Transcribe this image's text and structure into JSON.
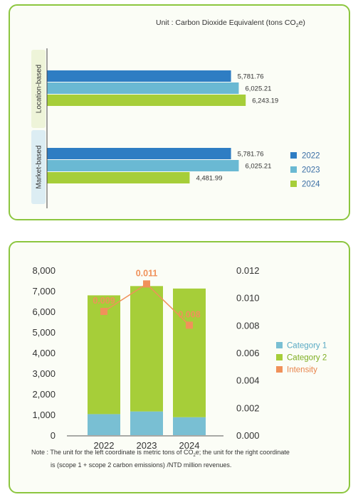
{
  "chart_data": [
    {
      "type": "bar",
      "orientation": "horizontal",
      "unit_label": "Unit : Carbon Dioxide Equivalent (tons CO",
      "unit_sub": "2",
      "unit_suffix": "e)",
      "groups": [
        "Location-based",
        "Market-based"
      ],
      "series": [
        {
          "name": "2022",
          "color": "#2e7dc3",
          "values": [
            5781.76,
            5781.76
          ],
          "labels": [
            "5,781.76",
            "5,781.76"
          ]
        },
        {
          "name": "2023",
          "color": "#6ab9d3",
          "values": [
            6025.21,
            6025.21
          ],
          "labels": [
            "6,025.21",
            "6,025.21"
          ]
        },
        {
          "name": "2024",
          "color": "#a6ce39",
          "values": [
            6243.19,
            4481.99
          ],
          "labels": [
            "6,243.19",
            "4,481.99"
          ]
        }
      ],
      "legend_position": "right"
    },
    {
      "type": "bar",
      "stacked": true,
      "categories": [
        "2022",
        "2023",
        "2024"
      ],
      "series": [
        {
          "name": "Category 1",
          "color": "#79bfd3",
          "values": [
            1020,
            1150,
            870
          ]
        },
        {
          "name": "Category 2",
          "color": "#a6ce39",
          "values": [
            5760,
            6080,
            6240
          ]
        },
        {
          "name": "Intensity",
          "type": "line",
          "axis": "right",
          "color": "#f0915a",
          "values": [
            0.009,
            0.011,
            0.008
          ],
          "labels": [
            "0.009",
            "0.011",
            "0.008"
          ]
        }
      ],
      "y_left": {
        "range": [
          0,
          8000
        ],
        "ticks": [
          "0",
          "1,000",
          "2,000",
          "3,000",
          "4,000",
          "5,000",
          "6,000",
          "7,000",
          "8,000"
        ]
      },
      "y_right": {
        "range": [
          0,
          0.012
        ],
        "ticks": [
          "0.000",
          "0.002",
          "0.004",
          "0.006",
          "0.008",
          "0.010",
          "0.012"
        ]
      },
      "legend_position": "right"
    }
  ],
  "note": {
    "line1_a": "Note : The unit for the left coordinate is metric tons of CO",
    "line1_sub": "2",
    "line1_b": "e; the unit for the right coordinate",
    "line2": "is (scope 1 + scope 2 carbon emissions) /NTD million revenues."
  }
}
